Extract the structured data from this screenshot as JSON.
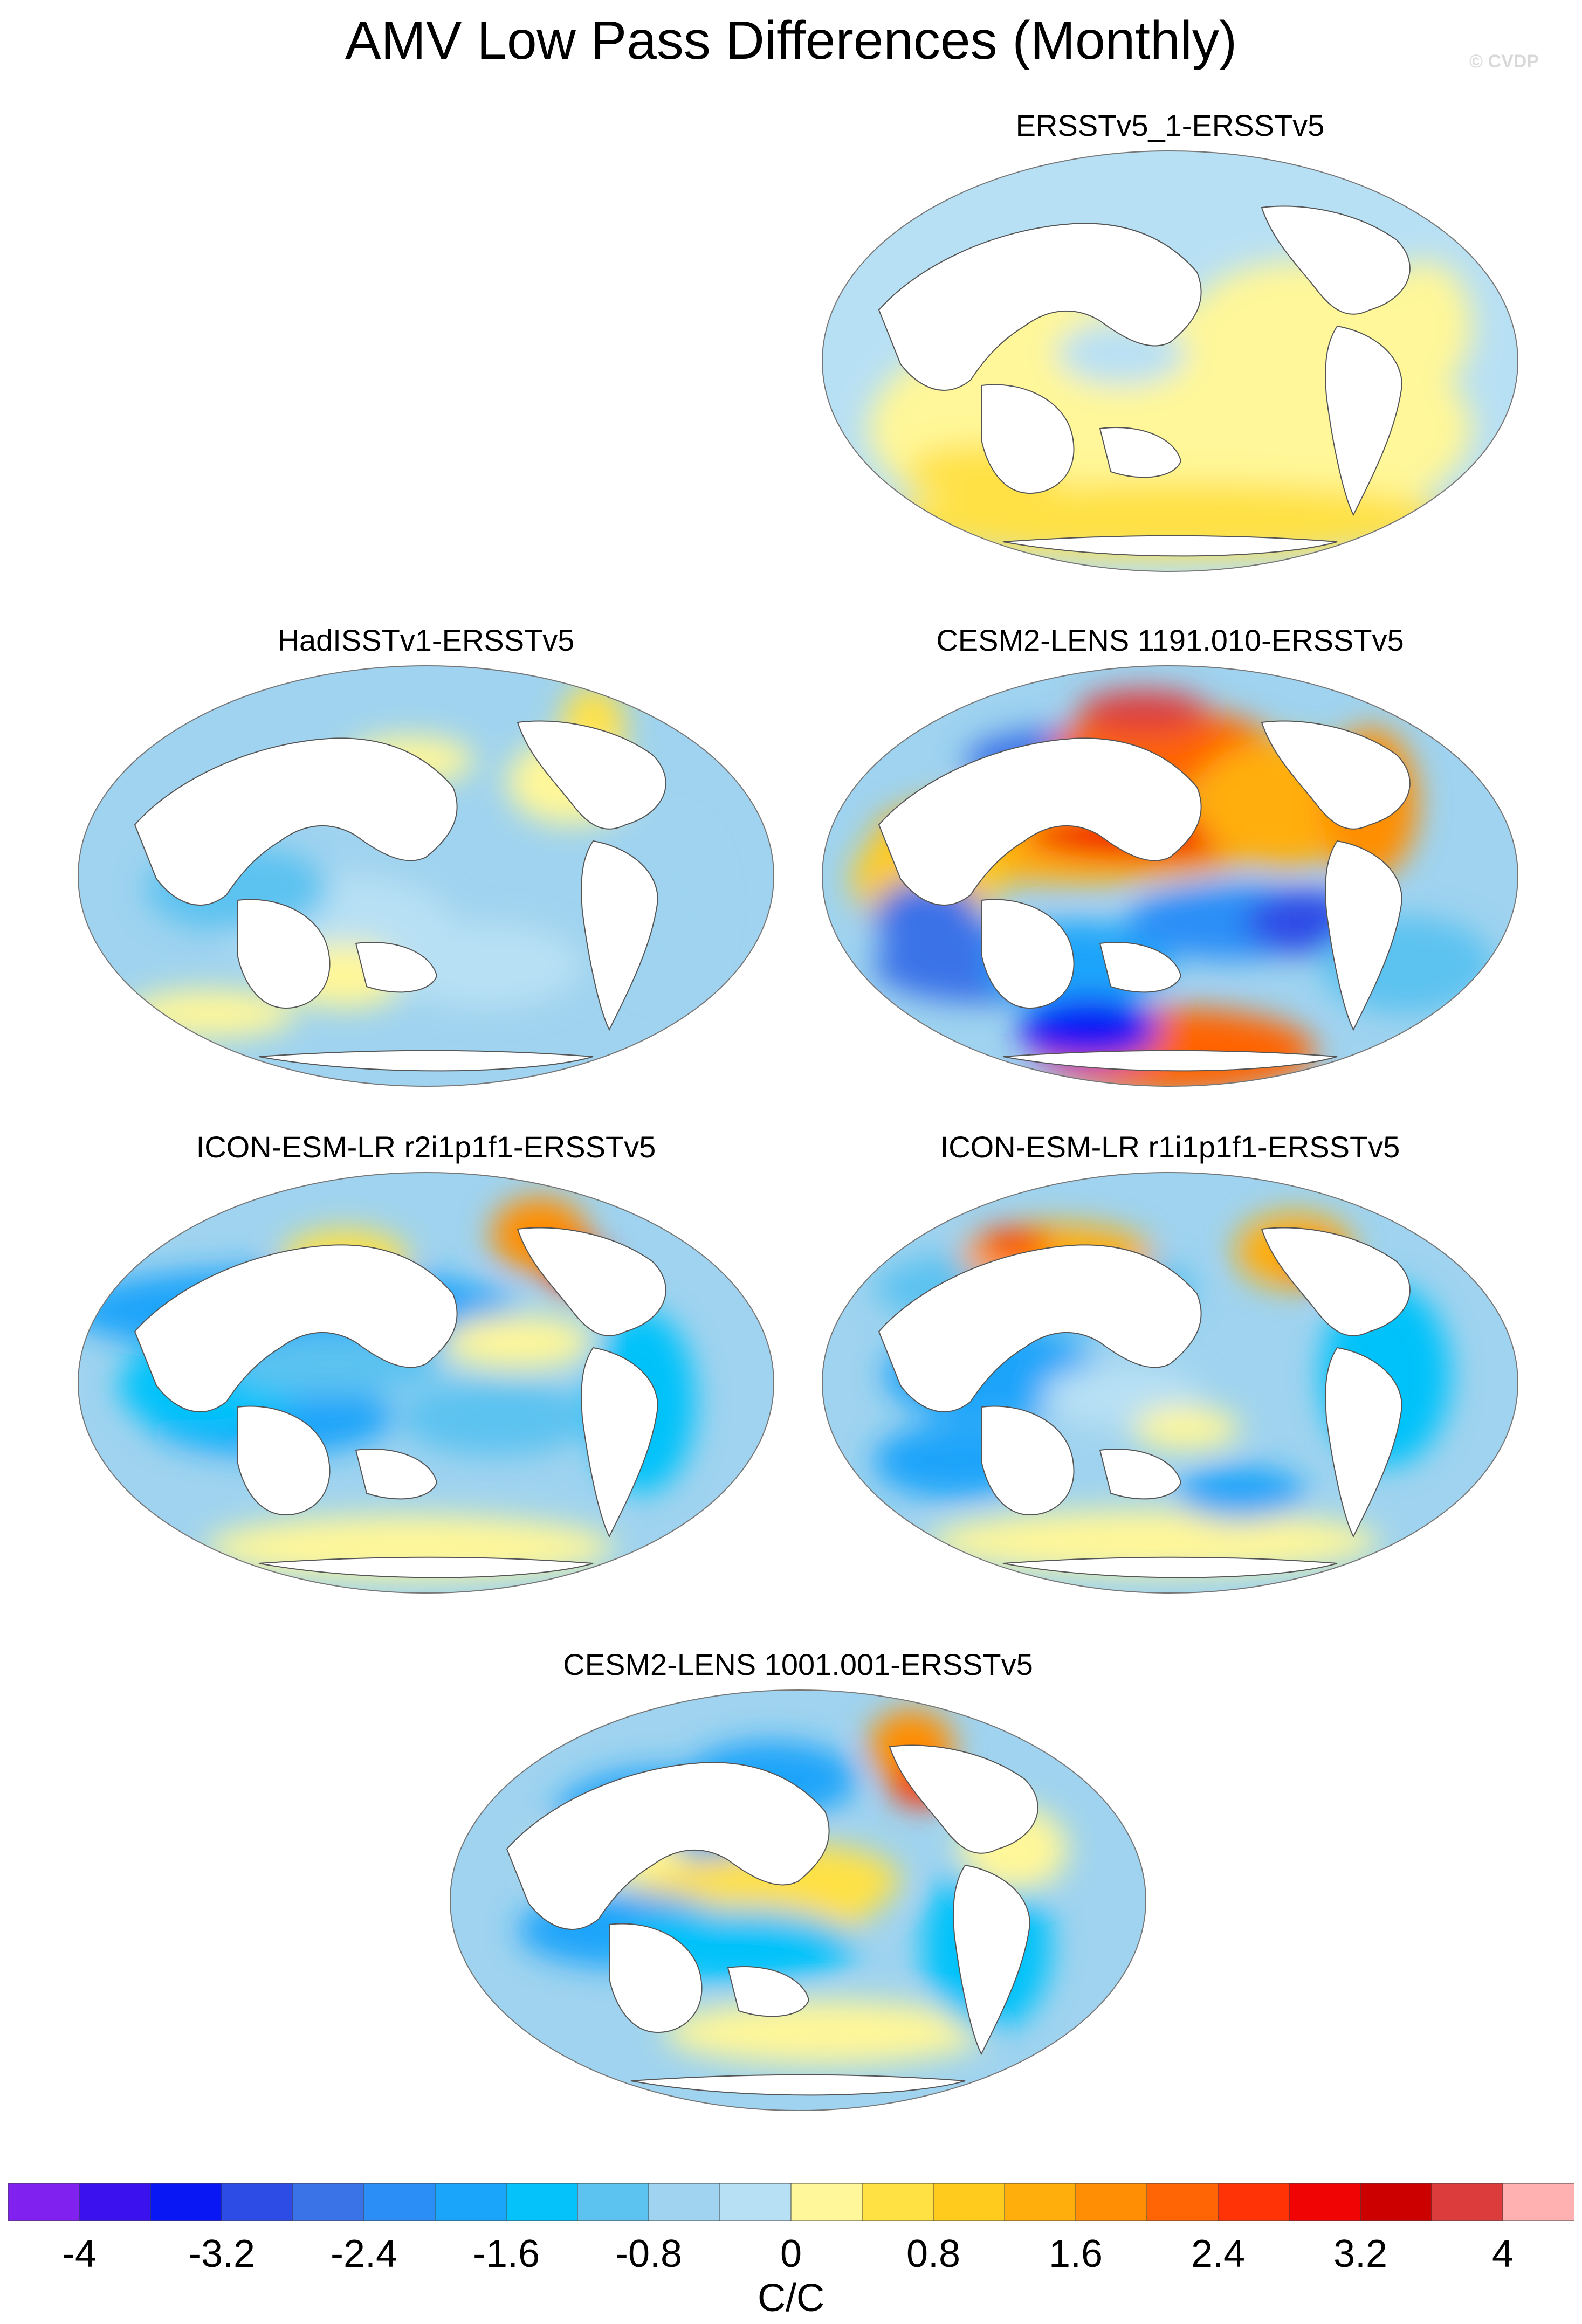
{
  "title": "AMV Low Pass Differences (Monthly)",
  "watermark": "© CVDP",
  "panels": [
    {
      "id": "p1",
      "title": "ERSSTv5_1-ERSSTv5",
      "scheme": "weak_pos"
    },
    {
      "id": "p2",
      "title": "HadISSTv1-ERSSTv5",
      "scheme": "weak_neg"
    },
    {
      "id": "p3",
      "title": "CESM2-LENS 1191.010-ERSSTv5",
      "scheme": "strong"
    },
    {
      "id": "p4",
      "title": "ICON-ESM-LR r2i1p1f1-ERSSTv5",
      "scheme": "neg_npac"
    },
    {
      "id": "p5",
      "title": "ICON-ESM-LR r1i1p1f1-ERSSTv5",
      "scheme": "neg_npac2"
    },
    {
      "id": "p6",
      "title": "CESM2-LENS 1001.001-ERSSTv5",
      "scheme": "mixed"
    }
  ],
  "colorbar": {
    "colors": [
      "#8121f0",
      "#3b12ee",
      "#0a17f5",
      "#2d4ce6",
      "#3a72e8",
      "#2b8ef7",
      "#1aa4fa",
      "#06c2fa",
      "#5cc2f0",
      "#9fd3ef",
      "#b8e0f4",
      "#fff799",
      "#ffe144",
      "#ffcb1d",
      "#ffae0c",
      "#ff8e04",
      "#ff6405",
      "#ff3306",
      "#f10404",
      "#cd0000",
      "#dc3c3c",
      "#ffb0b0"
    ],
    "tick_labels": [
      "-4",
      "-3.2",
      "-2.4",
      "-1.6",
      "-0.8",
      "0",
      "0.8",
      "1.6",
      "2.4",
      "3.2",
      "4"
    ],
    "units": "C/C"
  }
}
